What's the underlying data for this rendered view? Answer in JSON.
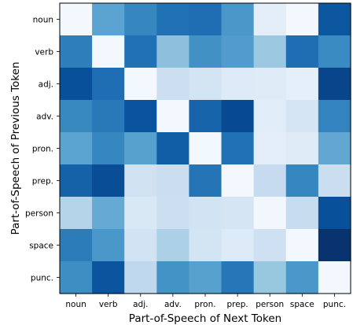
{
  "chart_data": {
    "type": "heatmap",
    "title": "",
    "xlabel": "Part-of-Speech of Next Token",
    "ylabel": "Part-of-Speech of Previous Token",
    "x_categories": [
      "noun",
      "verb",
      "adj.",
      "adv.",
      "pron.",
      "prep.",
      "person",
      "space",
      "punc."
    ],
    "y_categories": [
      "noun",
      "verb",
      "adj.",
      "adv.",
      "pron.",
      "prep.",
      "person",
      "space",
      "punc."
    ],
    "colormap": "Blues",
    "value_range": [
      0,
      1
    ],
    "values": [
      [
        0.02,
        0.55,
        0.67,
        0.75,
        0.76,
        0.6,
        0.1,
        0.02,
        0.85
      ],
      [
        0.7,
        0.02,
        0.75,
        0.42,
        0.63,
        0.58,
        0.38,
        0.76,
        0.65
      ],
      [
        0.88,
        0.76,
        0.02,
        0.22,
        0.18,
        0.13,
        0.12,
        0.09,
        0.92
      ],
      [
        0.66,
        0.72,
        0.87,
        0.02,
        0.8,
        0.9,
        0.11,
        0.17,
        0.68
      ],
      [
        0.55,
        0.67,
        0.56,
        0.83,
        0.02,
        0.75,
        0.1,
        0.12,
        0.53
      ],
      [
        0.81,
        0.89,
        0.2,
        0.23,
        0.74,
        0.02,
        0.25,
        0.67,
        0.23
      ],
      [
        0.3,
        0.52,
        0.15,
        0.22,
        0.19,
        0.17,
        0.03,
        0.24,
        0.88
      ],
      [
        0.71,
        0.6,
        0.19,
        0.33,
        0.18,
        0.13,
        0.21,
        0.02,
        0.99
      ],
      [
        0.64,
        0.86,
        0.27,
        0.62,
        0.56,
        0.73,
        0.39,
        0.6,
        0.02
      ]
    ]
  }
}
